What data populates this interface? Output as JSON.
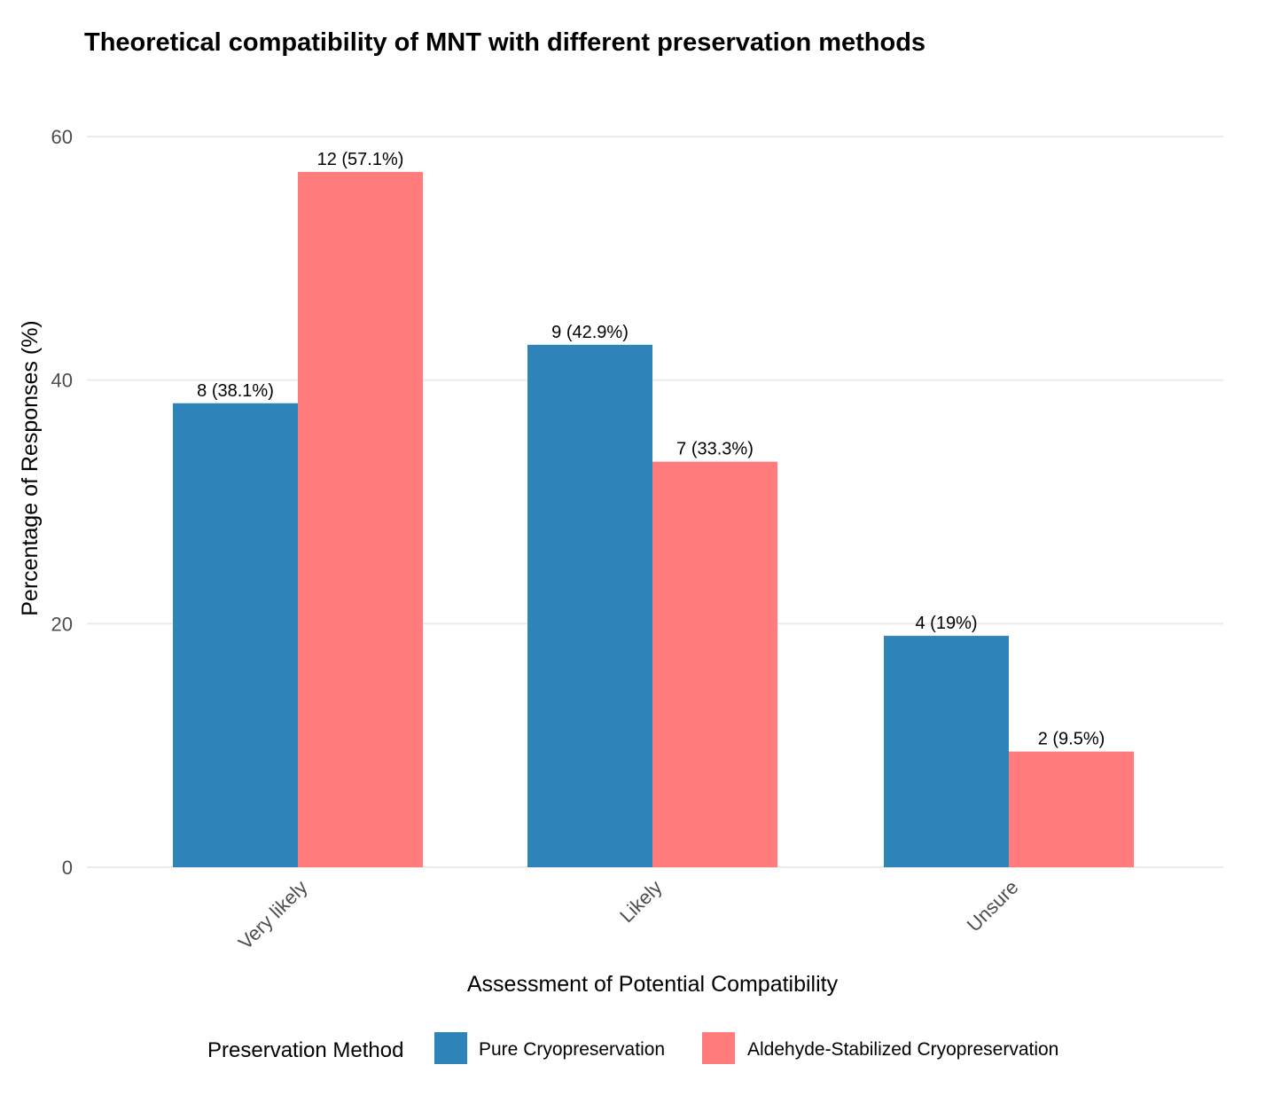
{
  "colors": {
    "series_1": "#2e83b9",
    "series_2": "#ff7b7c"
  },
  "chart_data": {
    "type": "bar",
    "title": "Theoretical compatibility of MNT with different preservation methods",
    "xlabel": "Assessment of Potential Compatibility",
    "ylabel": "Percentage of Responses (%)",
    "ylim": [
      0,
      60
    ],
    "y_ticks": [
      0,
      20,
      40,
      60
    ],
    "grid": true,
    "categories": [
      "Very likely",
      "Likely",
      "Unsure"
    ],
    "series": [
      {
        "name": "Pure Cryopreservation",
        "values": [
          38.1,
          42.9,
          19.0
        ],
        "counts": [
          8,
          9,
          4
        ],
        "labels": [
          "8 (38.1%)",
          "9 (42.9%)",
          "4 (19%)"
        ]
      },
      {
        "name": "Aldehyde-Stabilized Cryopreservation",
        "values": [
          57.1,
          33.3,
          9.5
        ],
        "counts": [
          12,
          7,
          2
        ],
        "labels": [
          "12 (57.1%)",
          "7 (33.3%)",
          "2 (9.5%)"
        ]
      }
    ],
    "legend": {
      "title": "Preservation Method",
      "position": "bottom"
    }
  }
}
